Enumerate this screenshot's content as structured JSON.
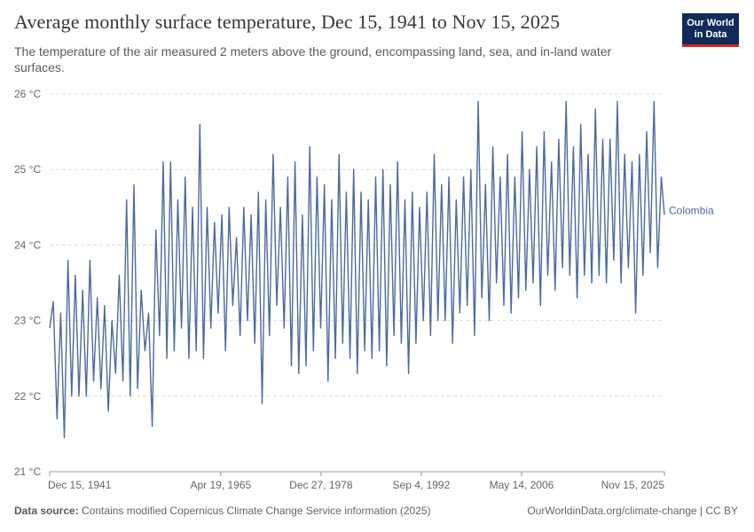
{
  "header": {
    "title": "Average monthly surface temperature, Dec 15, 1941 to Nov 15, 2025",
    "subtitle": "The temperature of the air measured 2 meters above the ground, encompassing land, sea, and in-land water surfaces.",
    "logo_line1": "Our World",
    "logo_line2": "in Data"
  },
  "footer": {
    "source_label": "Data source:",
    "source_text": "Contains modified Copernicus Climate Change Service information (2025)",
    "right_text": "OurWorldinData.org/climate-change | CC BY"
  },
  "colors": {
    "series": "#4c6a9c",
    "grid": "#dddddd",
    "axis": "#999999"
  },
  "chart_data": {
    "type": "line",
    "title": "Average monthly surface temperature, Dec 15, 1941 to Nov 15, 2025",
    "xlabel": "",
    "ylabel": "",
    "x_range": [
      1941.95,
      2025.87
    ],
    "ylim": [
      21,
      26
    ],
    "yticks": [
      21,
      22,
      23,
      24,
      25,
      26
    ],
    "ytick_labels": [
      "21 °C",
      "22 °C",
      "23 °C",
      "24 °C",
      "25 °C",
      "26 °C"
    ],
    "xticks": [
      1941.95,
      1965.3,
      1978.99,
      1992.68,
      2006.37,
      2025.87
    ],
    "xtick_labels": [
      "Dec 15, 1941",
      "Apr 19, 1965",
      "Dec 27, 1978",
      "Sep 4, 1992",
      "May 14, 2006",
      "Nov 15, 2025"
    ],
    "grid": true,
    "series": [
      {
        "name": "Colombia",
        "x": [
          1941.95,
          1942.45,
          1942.95,
          1943.45,
          1943.95,
          1944.45,
          1944.95,
          1945.45,
          1945.95,
          1946.45,
          1946.95,
          1947.45,
          1947.95,
          1948.45,
          1948.95,
          1949.45,
          1949.95,
          1950.45,
          1950.95,
          1951.45,
          1951.95,
          1952.45,
          1952.95,
          1953.45,
          1953.95,
          1954.45,
          1954.95,
          1955.45,
          1955.95,
          1956.45,
          1956.95,
          1957.45,
          1957.95,
          1958.45,
          1958.95,
          1959.45,
          1959.95,
          1960.45,
          1960.95,
          1961.45,
          1961.95,
          1962.45,
          1962.95,
          1963.45,
          1963.95,
          1964.45,
          1964.95,
          1965.45,
          1965.95,
          1966.45,
          1966.95,
          1967.45,
          1967.95,
          1968.45,
          1968.95,
          1969.45,
          1969.95,
          1970.45,
          1970.95,
          1971.45,
          1971.95,
          1972.45,
          1972.95,
          1973.45,
          1973.95,
          1974.45,
          1974.95,
          1975.45,
          1975.95,
          1976.45,
          1976.95,
          1977.45,
          1977.95,
          1978.45,
          1978.95,
          1979.45,
          1979.95,
          1980.45,
          1980.95,
          1981.45,
          1981.95,
          1982.45,
          1982.95,
          1983.45,
          1983.95,
          1984.45,
          1984.95,
          1985.45,
          1985.95,
          1986.45,
          1986.95,
          1987.45,
          1987.95,
          1988.45,
          1988.95,
          1989.45,
          1989.95,
          1990.45,
          1990.95,
          1991.45,
          1991.95,
          1992.45,
          1992.95,
          1993.45,
          1993.95,
          1994.45,
          1994.95,
          1995.45,
          1995.95,
          1996.45,
          1996.95,
          1997.45,
          1997.95,
          1998.45,
          1998.95,
          1999.45,
          1999.95,
          2000.45,
          2000.95,
          2001.45,
          2001.95,
          2002.45,
          2002.95,
          2003.45,
          2003.95,
          2004.45,
          2004.95,
          2005.45,
          2005.95,
          2006.45,
          2006.95,
          2007.45,
          2007.95,
          2008.45,
          2008.95,
          2009.45,
          2009.95,
          2010.45,
          2010.95,
          2011.45,
          2011.95,
          2012.45,
          2012.95,
          2013.45,
          2013.95,
          2014.45,
          2014.95,
          2015.45,
          2015.95,
          2016.45,
          2016.95,
          2017.45,
          2017.95,
          2018.45,
          2018.95,
          2019.45,
          2019.95,
          2020.45,
          2020.95,
          2021.45,
          2021.95,
          2022.45,
          2022.95,
          2023.45,
          2023.95,
          2024.45,
          2024.95,
          2025.45,
          2025.87
        ],
        "values": [
          22.9,
          23.25,
          21.7,
          23.1,
          21.45,
          23.8,
          22.0,
          23.6,
          22.0,
          23.4,
          22.0,
          23.8,
          22.2,
          23.3,
          22.1,
          23.2,
          21.8,
          23.0,
          22.3,
          23.6,
          22.2,
          24.6,
          22.0,
          24.8,
          22.1,
          23.4,
          22.6,
          23.1,
          21.6,
          24.2,
          22.8,
          25.1,
          22.5,
          25.1,
          22.6,
          24.6,
          22.9,
          24.9,
          22.5,
          24.5,
          22.6,
          25.6,
          22.5,
          24.5,
          22.9,
          24.3,
          23.1,
          24.4,
          22.6,
          24.5,
          23.2,
          24.1,
          22.8,
          24.5,
          23.0,
          24.4,
          22.7,
          24.7,
          21.9,
          24.6,
          22.8,
          25.2,
          23.2,
          24.5,
          22.9,
          24.9,
          22.4,
          25.1,
          22.3,
          24.4,
          22.4,
          25.3,
          22.6,
          24.9,
          22.9,
          24.8,
          22.2,
          24.6,
          22.5,
          25.2,
          22.7,
          24.7,
          22.5,
          25.0,
          22.3,
          24.7,
          22.6,
          24.6,
          22.5,
          24.9,
          22.6,
          25.0,
          22.4,
          24.8,
          22.8,
          25.1,
          22.7,
          24.6,
          22.3,
          24.7,
          22.7,
          24.5,
          23.0,
          24.7,
          22.8,
          25.2,
          23.0,
          24.8,
          23.0,
          24.9,
          22.7,
          24.6,
          23.1,
          24.9,
          23.2,
          25.0,
          22.8,
          25.9,
          23.3,
          24.8,
          23.0,
          25.3,
          23.5,
          24.9,
          23.2,
          25.2,
          23.1,
          24.9,
          23.3,
          25.5,
          23.4,
          25.0,
          23.5,
          25.3,
          23.2,
          25.5,
          23.6,
          25.1,
          23.4,
          25.4,
          23.7,
          25.9,
          23.6,
          25.3,
          23.3,
          25.6,
          23.6,
          25.2,
          23.5,
          25.8,
          23.6,
          25.4,
          23.5,
          25.4,
          23.8,
          25.9,
          23.5,
          25.2,
          23.7,
          25.1,
          23.1,
          25.2,
          23.6,
          25.5,
          23.9,
          25.9,
          23.7,
          24.9,
          24.4
        ]
      }
    ]
  }
}
